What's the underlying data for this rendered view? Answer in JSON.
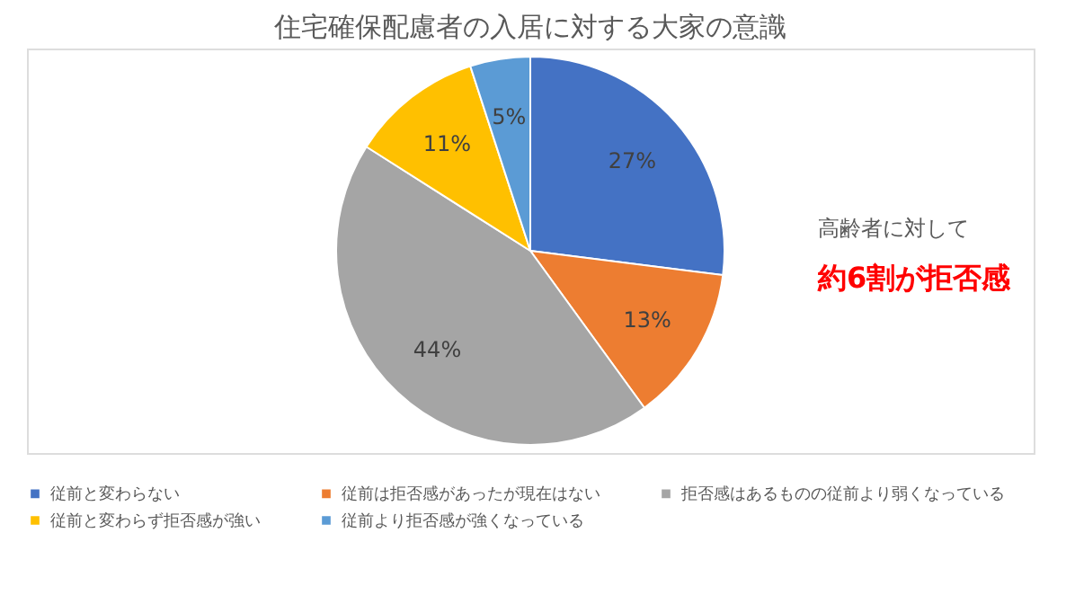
{
  "chart_data": {
    "type": "pie",
    "title": "住宅確保配慮者の入居に対する大家の意識",
    "categories": [
      "従前と変わらない",
      "従前は拒否感があったが現在はない",
      "拒否感はあるものの従前より弱くなっている",
      "従前と変わらず拒否感が強い",
      "従前より拒否感が強くなっている"
    ],
    "values": [
      27,
      13,
      44,
      11,
      5
    ],
    "colors": [
      "#4472c4",
      "#ed7d31",
      "#a5a5a5",
      "#ffc000",
      "#5b9bd5"
    ],
    "value_labels": [
      "27%",
      "13%",
      "44%",
      "11%",
      "5%"
    ],
    "annotations": [
      "高齢者に対して",
      "約6割が拒否感"
    ],
    "legend": "bottom"
  }
}
